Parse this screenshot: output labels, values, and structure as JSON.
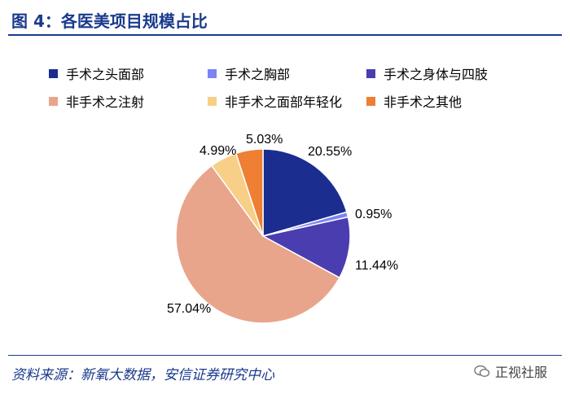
{
  "title": "图 4：各医美项目规模占比",
  "source": "资料来源：新氧大数据，安信证券研究中心",
  "watermark": "正视社服",
  "chart_data": {
    "type": "pie",
    "title": "",
    "legend_position": "top",
    "categories": [
      "手术之头面部",
      "手术之胸部",
      "手术之身体与四肢",
      "非手术之注射",
      "非手术之面部年轻化",
      "非手术之其他"
    ],
    "values": [
      20.55,
      0.95,
      11.44,
      57.04,
      4.99,
      5.03
    ],
    "labels": [
      "20.55%",
      "0.95%",
      "11.44%",
      "57.04%",
      "4.99%",
      "5.03%"
    ],
    "colors": [
      "#1b2d8f",
      "#7b83f5",
      "#4a3db0",
      "#e8a58c",
      "#f7cf86",
      "#ee7f33"
    ]
  }
}
